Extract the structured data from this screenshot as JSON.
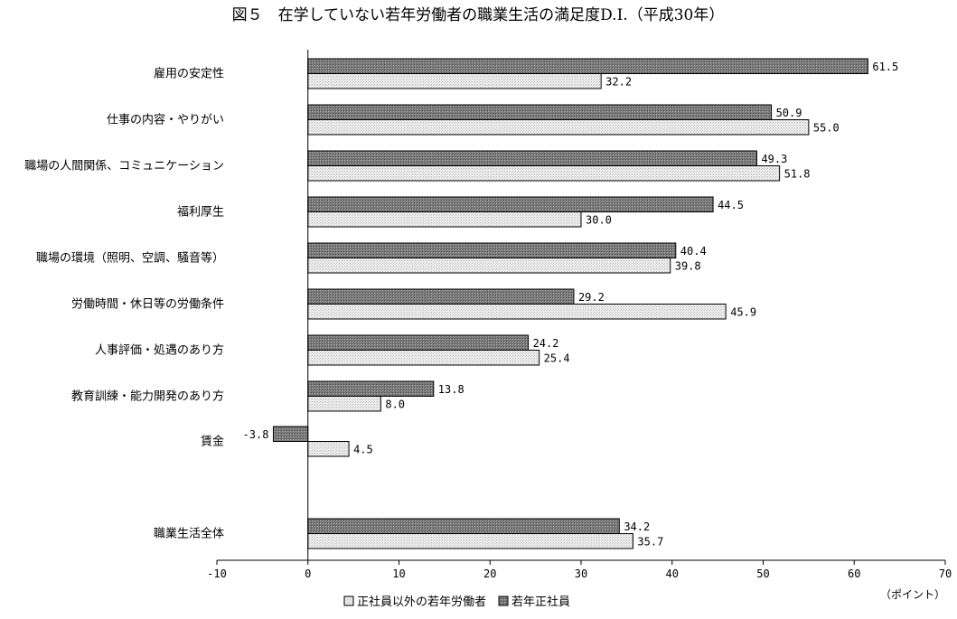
{
  "chart_data": {
    "type": "bar",
    "orientation": "horizontal",
    "title": "図５　在学していない若年労働者の職業生活の満足度D.I.（平成30年）",
    "xlabel": "（ポイント）",
    "ylabel": "",
    "xlim": [
      -10,
      70
    ],
    "xticks": [
      "-10",
      "0",
      "10",
      "20",
      "30",
      "40",
      "50",
      "60",
      "70"
    ],
    "grid": false,
    "legend_position": "bottom",
    "categories": [
      "雇用の安定性",
      "仕事の内容・やりがい",
      "職場の人間関係、コミュニケーション",
      "福利厚生",
      "職場の環境（照明、空調、騒音等）",
      "労働時間・休日等の労働条件",
      "人事評価・処遇のあり方",
      "教育訓練・能力開発のあり方",
      "賃金",
      "職業生活全体"
    ],
    "series": [
      {
        "name": "若年正社員",
        "color": "#8c8c8c",
        "values": [
          61.5,
          50.9,
          49.3,
          44.5,
          40.4,
          29.2,
          24.2,
          13.8,
          -3.8,
          34.2
        ],
        "labels": [
          "61.5",
          "50.9",
          "49.3",
          "44.5",
          "40.4",
          "29.2",
          "24.2",
          "13.8",
          "-3.8",
          "34.2"
        ]
      },
      {
        "name": "正社員以外の若年労働者",
        "color": "#e2e2e2",
        "values": [
          32.2,
          55.0,
          51.8,
          30.0,
          39.8,
          45.9,
          25.4,
          8.0,
          4.5,
          35.7
        ],
        "labels": [
          "32.2",
          "55.0",
          "51.8",
          "30.0",
          "39.8",
          "45.9",
          "25.4",
          "8.0",
          "4.5",
          "35.7"
        ]
      }
    ],
    "legend": [
      {
        "name": "正社員以外の若年労働者",
        "color": "#e2e2e2"
      },
      {
        "name": "若年正社員",
        "color": "#8c8c8c"
      }
    ]
  }
}
